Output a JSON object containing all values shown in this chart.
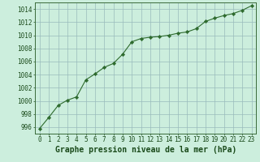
{
  "x": [
    0,
    1,
    2,
    3,
    4,
    5,
    6,
    7,
    8,
    9,
    10,
    11,
    12,
    13,
    14,
    15,
    16,
    17,
    18,
    19,
    20,
    21,
    22,
    23
  ],
  "y": [
    995.8,
    997.5,
    999.3,
    1000.1,
    1000.6,
    1003.2,
    1004.1,
    1005.1,
    1005.7,
    1007.1,
    1009.0,
    1009.5,
    1009.7,
    1009.8,
    1010.0,
    1010.3,
    1010.5,
    1011.0,
    1012.1,
    1012.6,
    1013.0,
    1013.3,
    1013.8,
    1014.5
  ],
  "line_color": "#2d6a2d",
  "marker_color": "#2d6a2d",
  "bg_color": "#cceedd",
  "grid_color": "#99bbbb",
  "xlabel": "Graphe pression niveau de la mer (hPa)",
  "xlabel_color": "#1a4a1a",
  "xlabel_fontsize": 7,
  "ylim": [
    995,
    1015
  ],
  "yticks": [
    996,
    998,
    1000,
    1002,
    1004,
    1006,
    1008,
    1010,
    1012,
    1014
  ],
  "xticks": [
    0,
    1,
    2,
    3,
    4,
    5,
    6,
    7,
    8,
    9,
    10,
    11,
    12,
    13,
    14,
    15,
    16,
    17,
    18,
    19,
    20,
    21,
    22,
    23
  ],
  "tick_fontsize": 5.5,
  "tick_color": "#1a4a1a"
}
